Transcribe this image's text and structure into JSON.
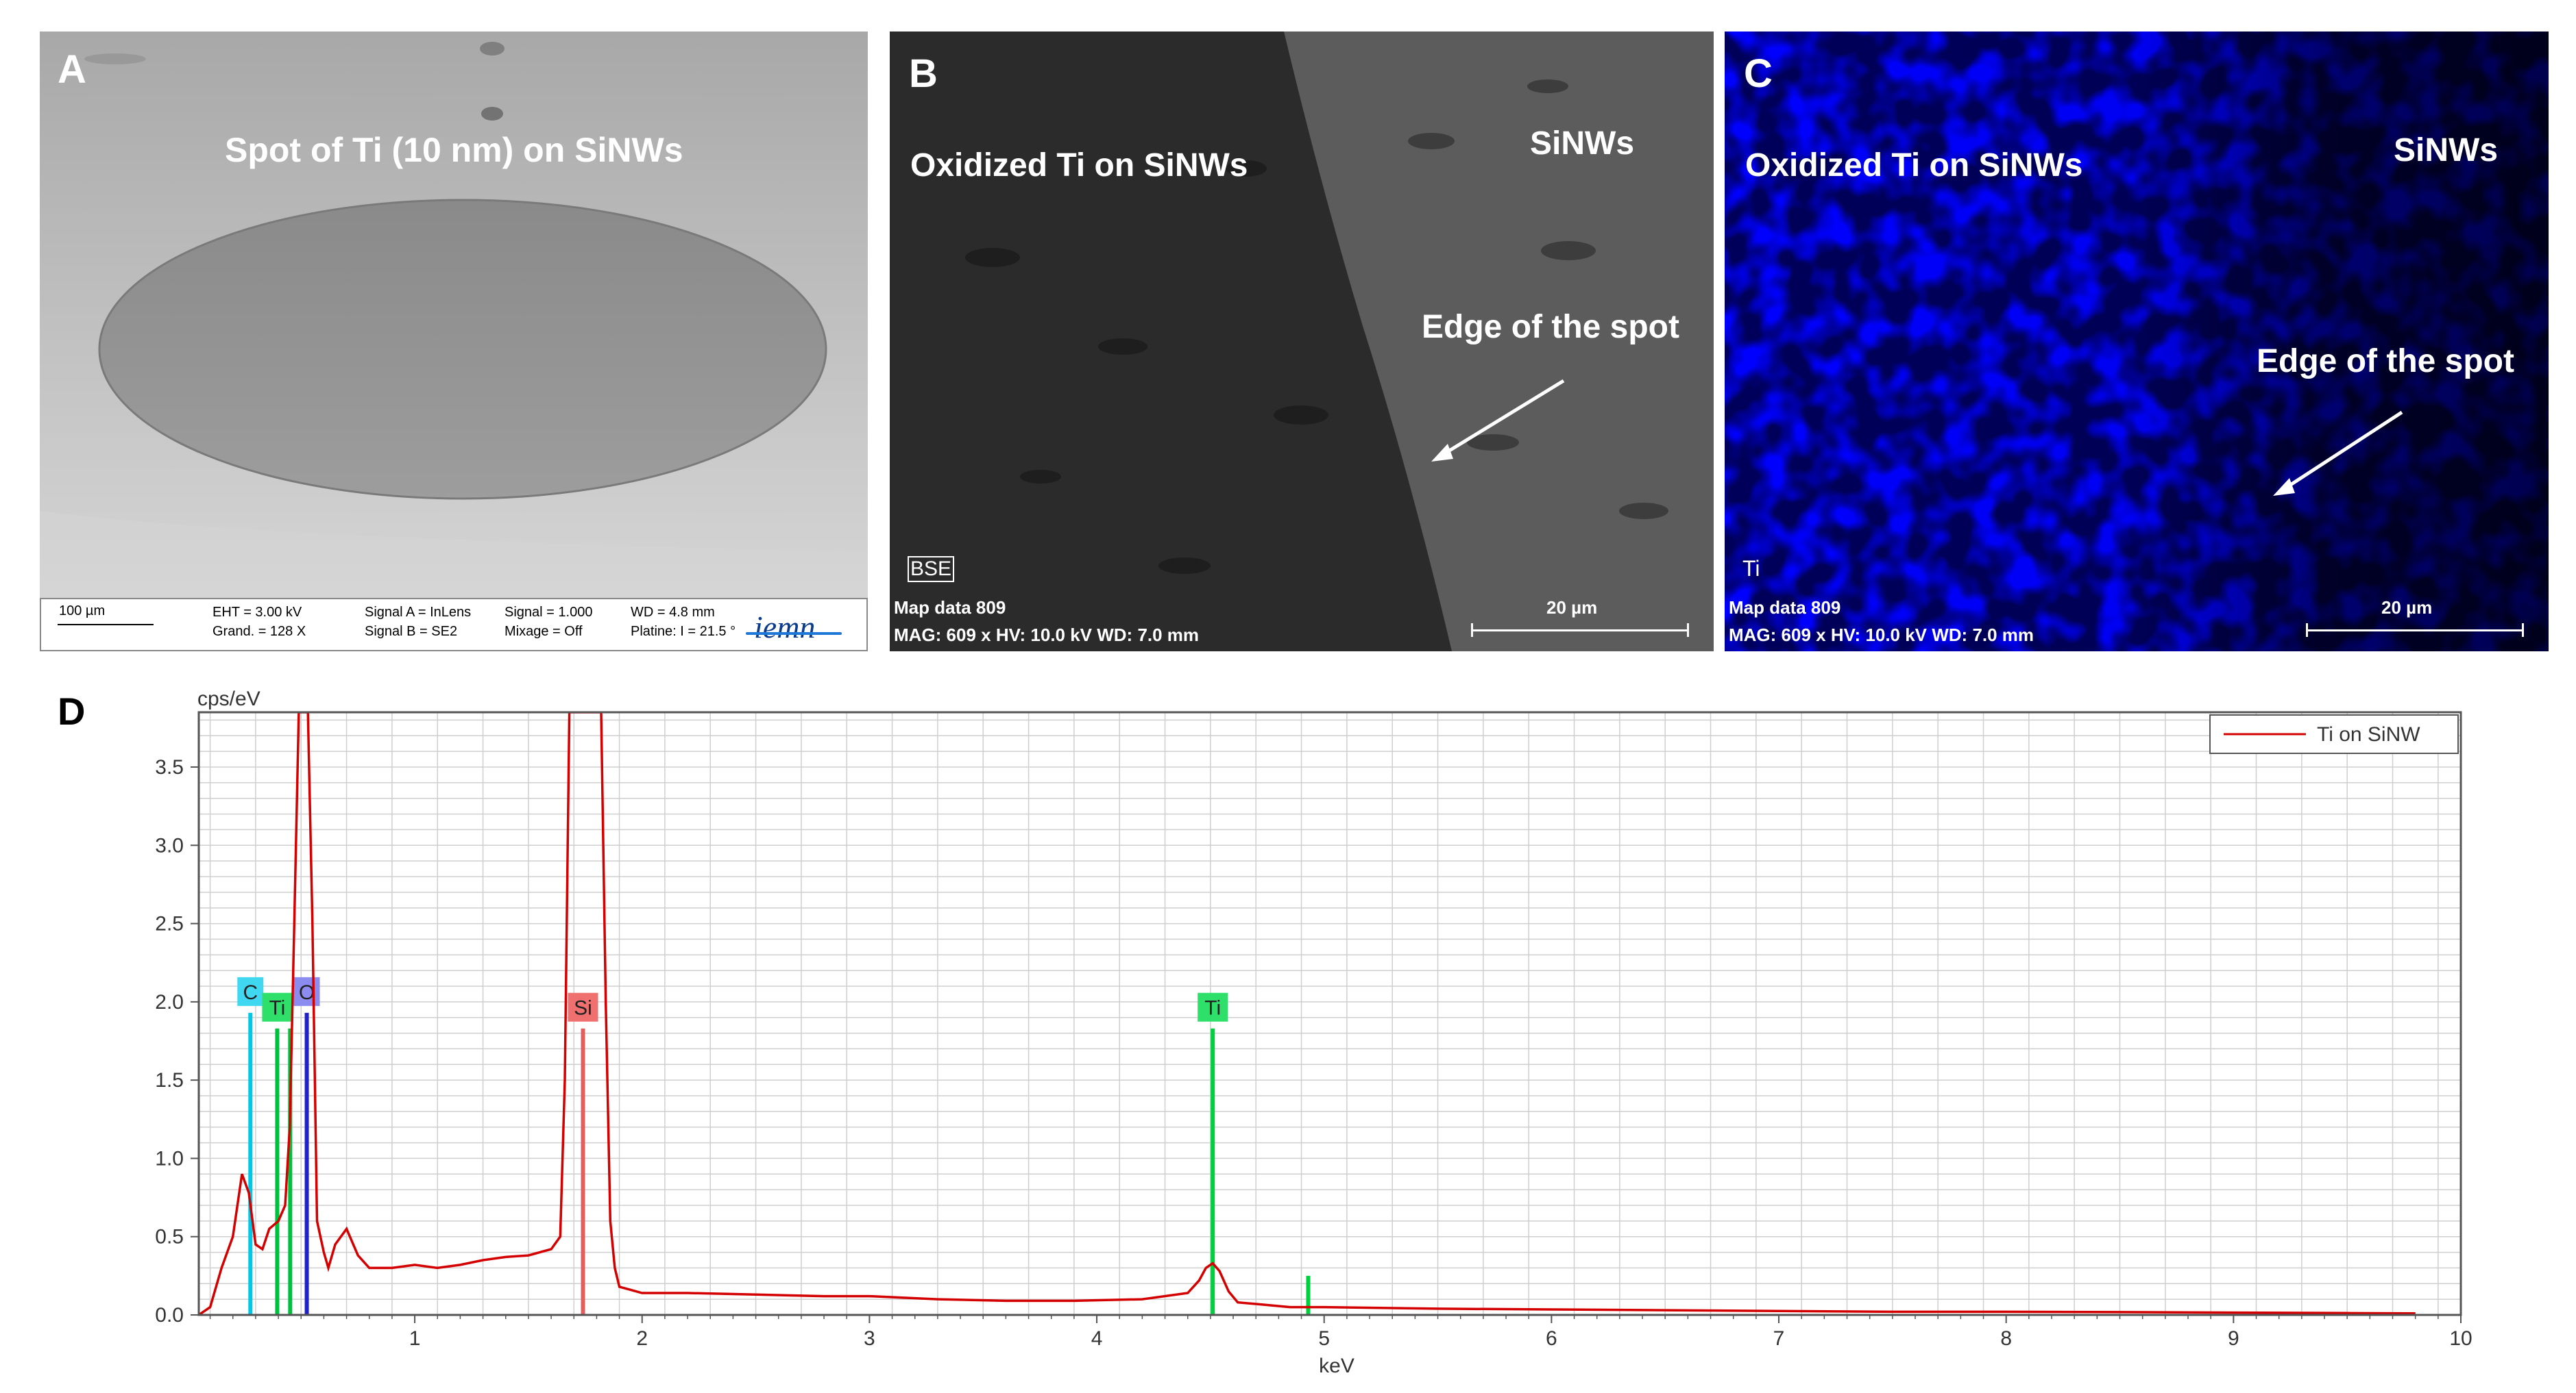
{
  "panels": {
    "A": {
      "letter": "A",
      "caption": "Spot of Ti (10 nm) on SiNWs",
      "scale": "100 µm",
      "eht": "EHT =  3.00 kV",
      "grand": "Grand. =   128 X",
      "signal_a": "Signal A = InLens",
      "signal_b": "Signal B = SE2",
      "signal": "Signal =  1.000",
      "mixage": "Mixage = Off",
      "wd": "WD =  4.8 mm",
      "platine": "Platine: I =  21.5 °",
      "logo": "iemn"
    },
    "B": {
      "letter": "B",
      "left_label": "Oxidized Ti on SiNWs",
      "right_label": "SiNWs",
      "edge_label": "Edge of the spot",
      "mode_tag": "BSE",
      "map": "Map data 809",
      "mag": "MAG: 609 x  HV: 10.0 kV  WD: 7.0 mm",
      "scale": "20 µm"
    },
    "C": {
      "letter": "C",
      "left_label": "Oxidized Ti on SiNWs",
      "right_label": "SiNWs",
      "edge_label": "Edge of the spot",
      "mode_tag": "Ti",
      "map": "Map data 809",
      "mag": "MAG: 609 x  HV: 10.0 kV  WD: 7.0 mm",
      "scale": "20 µm"
    },
    "D": {
      "letter": "D"
    }
  },
  "chart_data": {
    "type": "line",
    "ylabel": "cps/eV",
    "xlabel": "keV",
    "xlim": [
      0.05,
      10
    ],
    "ylim": [
      0,
      3.85
    ],
    "xticks": [
      "1",
      "2",
      "3",
      "4",
      "5",
      "6",
      "7",
      "8",
      "9",
      "10"
    ],
    "yticks": [
      "0.0",
      "0.5",
      "1.0",
      "1.5",
      "2.0",
      "2.5",
      "3.0",
      "3.5"
    ],
    "grid": true,
    "legend_position": "top-right",
    "series": [
      {
        "name": "Ti on SiNW",
        "color": "#d40000",
        "x": [
          0.05,
          0.1,
          0.15,
          0.2,
          0.24,
          0.27,
          0.3,
          0.33,
          0.36,
          0.4,
          0.43,
          0.45,
          0.47,
          0.49,
          0.51,
          0.53,
          0.55,
          0.57,
          0.6,
          0.62,
          0.65,
          0.7,
          0.75,
          0.8,
          0.9,
          1.0,
          1.1,
          1.2,
          1.3,
          1.4,
          1.5,
          1.6,
          1.64,
          1.66,
          1.68,
          1.7,
          1.72,
          1.74,
          1.76,
          1.78,
          1.8,
          1.82,
          1.84,
          1.86,
          1.88,
          1.9,
          1.95,
          2.0,
          2.2,
          2.5,
          2.8,
          3.0,
          3.3,
          3.6,
          3.9,
          4.2,
          4.4,
          4.45,
          4.48,
          4.51,
          4.54,
          4.58,
          4.62,
          4.7,
          4.85,
          5.0,
          5.5,
          6.0,
          6.5,
          7.0,
          7.5,
          8.0,
          8.5,
          9.0,
          9.5,
          9.8
        ],
        "y": [
          0.0,
          0.05,
          0.3,
          0.5,
          0.9,
          0.78,
          0.45,
          0.42,
          0.55,
          0.6,
          0.7,
          1.2,
          2.5,
          3.85,
          3.85,
          3.85,
          2.5,
          0.6,
          0.4,
          0.3,
          0.45,
          0.55,
          0.38,
          0.3,
          0.3,
          0.32,
          0.3,
          0.32,
          0.35,
          0.37,
          0.38,
          0.42,
          0.5,
          1.5,
          3.85,
          3.85,
          3.85,
          3.85,
          3.85,
          3.85,
          3.85,
          3.85,
          2.0,
          0.6,
          0.3,
          0.18,
          0.16,
          0.14,
          0.14,
          0.13,
          0.12,
          0.12,
          0.1,
          0.09,
          0.09,
          0.1,
          0.14,
          0.22,
          0.3,
          0.33,
          0.28,
          0.15,
          0.08,
          0.07,
          0.05,
          0.05,
          0.04,
          0.035,
          0.03,
          0.025,
          0.02,
          0.02,
          0.018,
          0.015,
          0.012,
          0.01
        ]
      }
    ],
    "element_markers": [
      {
        "label": "C",
        "x": 0.277,
        "height": 1.93,
        "color": "#00c8e6",
        "tag_fill": "#40d8f0"
      },
      {
        "label": "Ti",
        "x": 0.395,
        "height": 1.83,
        "color": "#00c040",
        "tag_fill": "#2ee06a"
      },
      {
        "label": "Ti",
        "x": 0.452,
        "height": 1.83,
        "color": "#00c040",
        "tag_fill": null
      },
      {
        "label": "O",
        "x": 0.525,
        "height": 1.93,
        "color": "#2020d0",
        "tag_fill": "#8c8cf0"
      },
      {
        "label": "Si",
        "x": 1.74,
        "height": 1.83,
        "color": "#e06060",
        "tag_fill": "#f07070"
      },
      {
        "label": "Ti",
        "x": 4.51,
        "height": 1.83,
        "color": "#00d040",
        "tag_fill": "#2ee06a"
      },
      {
        "label": "",
        "x": 4.93,
        "height": 0.25,
        "color": "#00d040",
        "tag_fill": null
      }
    ]
  }
}
